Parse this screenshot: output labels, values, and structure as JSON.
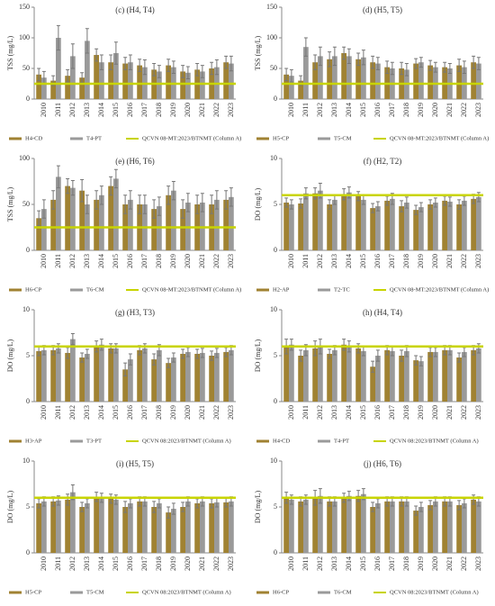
{
  "chart_data": [
    {
      "type": "bar",
      "title": "(c) (H4, T4)",
      "y_label": "TSS (mg/L)",
      "categories": [
        "2010",
        "2011",
        "2012",
        "2013",
        "2014",
        "2015",
        "2016",
        "2017",
        "2018",
        "2019",
        "2020",
        "2021",
        "2022",
        "2023"
      ],
      "series": [
        {
          "name": "H4-CD",
          "color": "#a08232",
          "values": [
            40,
            30,
            38,
            35,
            72,
            60,
            58,
            55,
            48,
            55,
            45,
            48,
            50,
            60
          ],
          "errors": [
            10,
            8,
            10,
            8,
            10,
            12,
            10,
            10,
            10,
            10,
            10,
            10,
            10,
            10
          ]
        },
        {
          "name": "T4-PT",
          "color": "#9a9a9a",
          "values": [
            35,
            100,
            70,
            95,
            60,
            75,
            60,
            52,
            45,
            52,
            43,
            45,
            52,
            58
          ],
          "errors": [
            10,
            20,
            20,
            20,
            12,
            18,
            12,
            12,
            10,
            10,
            10,
            10,
            12,
            12
          ]
        }
      ],
      "standard": {
        "name": "QCVN 08-MT:2023/BTNMT (Column A)",
        "value": 25,
        "color": "#c8d400"
      },
      "ylim": [
        0,
        150
      ],
      "yticks": [
        0,
        50,
        100,
        150
      ]
    },
    {
      "type": "bar",
      "title": "(d) (H5, T5)",
      "y_label": "TSS (mg/L)",
      "categories": [
        "2010",
        "2011",
        "2012",
        "2013",
        "2014",
        "2015",
        "2016",
        "2017",
        "2018",
        "2019",
        "2020",
        "2021",
        "2022",
        "2023"
      ],
      "series": [
        {
          "name": "H5-CP",
          "color": "#a08232",
          "values": [
            40,
            30,
            60,
            65,
            75,
            65,
            60,
            52,
            50,
            58,
            55,
            52,
            55,
            60
          ],
          "errors": [
            10,
            8,
            12,
            12,
            10,
            10,
            10,
            10,
            10,
            8,
            8,
            8,
            10,
            10
          ]
        },
        {
          "name": "T5-CM",
          "color": "#9a9a9a",
          "values": [
            38,
            85,
            70,
            70,
            70,
            68,
            58,
            50,
            48,
            60,
            52,
            50,
            52,
            58
          ],
          "errors": [
            10,
            15,
            15,
            15,
            12,
            12,
            10,
            10,
            10,
            8,
            8,
            8,
            10,
            10
          ]
        }
      ],
      "standard": {
        "name": "QCVN 08-MT:2023/BTNMT (Column A)",
        "value": 25,
        "color": "#c8d400"
      },
      "ylim": [
        0,
        150
      ],
      "yticks": [
        0,
        50,
        100,
        150
      ]
    },
    {
      "type": "bar",
      "title": "(e) (H6, T6)",
      "y_label": "TSS (mg/L)",
      "categories": [
        "2010",
        "2011",
        "2012",
        "2013",
        "2014",
        "2015",
        "2016",
        "2017",
        "2018",
        "2019",
        "2020",
        "2021",
        "2022",
        "2023"
      ],
      "series": [
        {
          "name": "H6-CP",
          "color": "#a08232",
          "values": [
            35,
            55,
            70,
            65,
            55,
            70,
            50,
            50,
            45,
            60,
            45,
            50,
            50,
            55
          ],
          "errors": [
            8,
            10,
            8,
            12,
            10,
            10,
            10,
            10,
            10,
            10,
            10,
            10,
            10,
            10
          ]
        },
        {
          "name": "T6-CM",
          "color": "#9a9a9a",
          "values": [
            45,
            80,
            68,
            50,
            60,
            78,
            55,
            50,
            48,
            65,
            52,
            52,
            55,
            58
          ],
          "errors": [
            10,
            12,
            8,
            10,
            10,
            10,
            10,
            10,
            10,
            10,
            10,
            10,
            10,
            10
          ]
        }
      ],
      "standard": {
        "name": "QCVN 08-MT:2023/BTNMT (Column A)",
        "value": 25,
        "color": "#c8d400"
      },
      "ylim": [
        0,
        100
      ],
      "yticks": [
        0,
        50,
        100
      ]
    },
    {
      "type": "bar",
      "title": "(f) (H2, T2)",
      "y_label": "DO (mg/L)",
      "categories": [
        "2010",
        "2011",
        "2012",
        "2013",
        "2014",
        "2015",
        "2016",
        "2017",
        "2018",
        "2019",
        "2020",
        "2021",
        "2022",
        "2023"
      ],
      "series": [
        {
          "name": "H2-AP",
          "color": "#a08232",
          "values": [
            5.2,
            5.1,
            6.2,
            5.0,
            6.1,
            5.9,
            4.6,
            5.4,
            4.8,
            4.4,
            5.0,
            5.4,
            5.0,
            5.6
          ],
          "errors": [
            0.5,
            0.5,
            0.6,
            0.5,
            0.6,
            0.5,
            0.5,
            0.5,
            0.6,
            0.5,
            0.5,
            0.5,
            0.5,
            0.5
          ]
        },
        {
          "name": "T2-TC",
          "color": "#9a9a9a",
          "values": [
            5.0,
            6.2,
            6.5,
            5.5,
            6.3,
            5.5,
            4.8,
            5.6,
            5.2,
            4.7,
            5.2,
            5.3,
            5.4,
            5.8
          ],
          "errors": [
            0.5,
            0.6,
            0.8,
            0.5,
            0.6,
            0.5,
            0.5,
            0.6,
            0.6,
            0.5,
            0.5,
            0.5,
            0.5,
            0.5
          ]
        }
      ],
      "standard": {
        "name": "QCVN 08-MT:2023/BTNMT (Column A)",
        "value": 6,
        "color": "#c8d400"
      },
      "ylim": [
        0,
        10
      ],
      "yticks": [
        0,
        5,
        10
      ]
    },
    {
      "type": "bar",
      "title": "(g) (H3, T3)",
      "y_label": "DO (mg/L)",
      "categories": [
        "2010",
        "2011",
        "2012",
        "2013",
        "2014",
        "2015",
        "2016",
        "2017",
        "2018",
        "2019",
        "2020",
        "2021",
        "2022",
        "2023"
      ],
      "series": [
        {
          "name": "H3-AP",
          "color": "#a08232",
          "values": [
            5.5,
            5.6,
            5.3,
            4.8,
            6.0,
            5.8,
            3.5,
            5.6,
            4.6,
            4.2,
            5.2,
            5.2,
            5.0,
            5.4
          ],
          "errors": [
            0.5,
            0.5,
            0.6,
            0.5,
            0.6,
            0.5,
            0.7,
            0.5,
            0.6,
            0.5,
            0.5,
            0.5,
            0.5,
            0.5
          ]
        },
        {
          "name": "T3-PT",
          "color": "#9a9a9a",
          "values": [
            5.6,
            5.8,
            6.8,
            5.2,
            6.2,
            5.8,
            4.6,
            5.8,
            5.6,
            4.8,
            5.4,
            5.3,
            5.3,
            5.6
          ],
          "errors": [
            0.5,
            0.5,
            0.6,
            0.5,
            0.6,
            0.5,
            0.6,
            0.5,
            0.6,
            0.5,
            0.5,
            0.5,
            0.5,
            0.5
          ]
        }
      ],
      "standard": {
        "name": "QCVN 08:2023/BTNMT (Column A)",
        "value": 6,
        "color": "#c8d400"
      },
      "ylim": [
        0,
        10
      ],
      "yticks": [
        0,
        5,
        10
      ]
    },
    {
      "type": "bar",
      "title": "(h) (H4, T4)",
      "y_label": "DO (mg/L)",
      "categories": [
        "2010",
        "2011",
        "2012",
        "2013",
        "2014",
        "2015",
        "2016",
        "2017",
        "2018",
        "2019",
        "2020",
        "2021",
        "2022",
        "2023"
      ],
      "series": [
        {
          "name": "H4-CD",
          "color": "#a08232",
          "values": [
            6.0,
            5.0,
            5.8,
            5.2,
            6.2,
            5.8,
            3.8,
            5.6,
            5.0,
            4.5,
            5.4,
            5.6,
            4.8,
            5.6
          ],
          "errors": [
            0.8,
            0.6,
            0.8,
            0.5,
            0.6,
            0.5,
            0.6,
            0.5,
            0.6,
            0.5,
            0.5,
            0.5,
            0.5,
            0.5
          ]
        },
        {
          "name": "T4-PT",
          "color": "#9a9a9a",
          "values": [
            6.2,
            5.6,
            6.0,
            5.6,
            6.0,
            5.5,
            5.0,
            5.5,
            5.5,
            4.4,
            5.4,
            5.6,
            5.4,
            5.8
          ],
          "errors": [
            0.6,
            0.6,
            0.8,
            0.5,
            0.6,
            0.5,
            0.6,
            0.5,
            0.6,
            0.5,
            0.5,
            0.5,
            0.5,
            0.5
          ]
        }
      ],
      "standard": {
        "name": "QCVN 08:2023/BTNMT (Column A)",
        "value": 6,
        "color": "#c8d400"
      },
      "ylim": [
        0,
        10
      ],
      "yticks": [
        0,
        5,
        10
      ]
    },
    {
      "type": "bar",
      "title": "(i) (H5, T5)",
      "y_label": "DO (mg/L)",
      "categories": [
        "2010",
        "2011",
        "2012",
        "2013",
        "2014",
        "2015",
        "2016",
        "2017",
        "2018",
        "2019",
        "2020",
        "2021",
        "2022",
        "2023"
      ],
      "series": [
        {
          "name": "H5-CP",
          "color": "#a08232",
          "values": [
            5.4,
            5.6,
            5.8,
            5.0,
            6.1,
            5.9,
            5.0,
            5.6,
            5.0,
            4.4,
            5.0,
            5.4,
            5.4,
            5.5
          ],
          "errors": [
            0.5,
            0.5,
            0.6,
            0.5,
            0.5,
            0.5,
            0.6,
            0.5,
            0.6,
            0.6,
            0.5,
            0.5,
            0.5,
            0.5
          ]
        },
        {
          "name": "T5-CM",
          "color": "#9a9a9a",
          "values": [
            5.6,
            5.7,
            6.6,
            5.4,
            6.0,
            5.8,
            5.4,
            5.6,
            5.4,
            4.8,
            5.6,
            5.6,
            5.5,
            5.6
          ],
          "errors": [
            0.5,
            0.5,
            0.8,
            0.5,
            0.5,
            0.5,
            0.5,
            0.5,
            0.5,
            0.6,
            0.5,
            0.5,
            0.5,
            0.5
          ]
        }
      ],
      "standard": {
        "name": "QCVN 08:2023/BTNMT (Column A)",
        "value": 6,
        "color": "#c8d400"
      },
      "ylim": [
        0,
        10
      ],
      "yticks": [
        0,
        5,
        10
      ]
    },
    {
      "type": "bar",
      "title": "(j) (H6, T6)",
      "y_label": "DO (mg/L)",
      "categories": [
        "2010",
        "2011",
        "2012",
        "2013",
        "2014",
        "2015",
        "2016",
        "2017",
        "2018",
        "2019",
        "2020",
        "2021",
        "2022",
        "2023"
      ],
      "series": [
        {
          "name": "H6-CP",
          "color": "#a08232",
          "values": [
            6.0,
            5.6,
            6.0,
            5.6,
            6.0,
            6.2,
            5.0,
            5.6,
            5.6,
            4.6,
            5.2,
            5.6,
            5.2,
            5.8
          ],
          "errors": [
            0.6,
            0.5,
            0.8,
            0.5,
            0.5,
            0.6,
            0.5,
            0.5,
            0.5,
            0.5,
            0.5,
            0.5,
            0.5,
            0.5
          ]
        },
        {
          "name": "T6-CM",
          "color": "#9a9a9a",
          "values": [
            5.8,
            5.8,
            6.2,
            5.6,
            6.2,
            6.4,
            5.4,
            5.6,
            5.6,
            5.0,
            5.6,
            5.6,
            5.4,
            5.6
          ],
          "errors": [
            0.5,
            0.5,
            0.8,
            0.5,
            0.5,
            0.6,
            0.5,
            0.5,
            0.5,
            0.5,
            0.5,
            0.5,
            0.5,
            0.5
          ]
        }
      ],
      "standard": {
        "name": "QCVN 08:2023/BTNMT (Column A)",
        "value": 6,
        "color": "#c8d400"
      },
      "ylim": [
        0,
        10
      ],
      "yticks": [
        0,
        5,
        10
      ]
    }
  ]
}
